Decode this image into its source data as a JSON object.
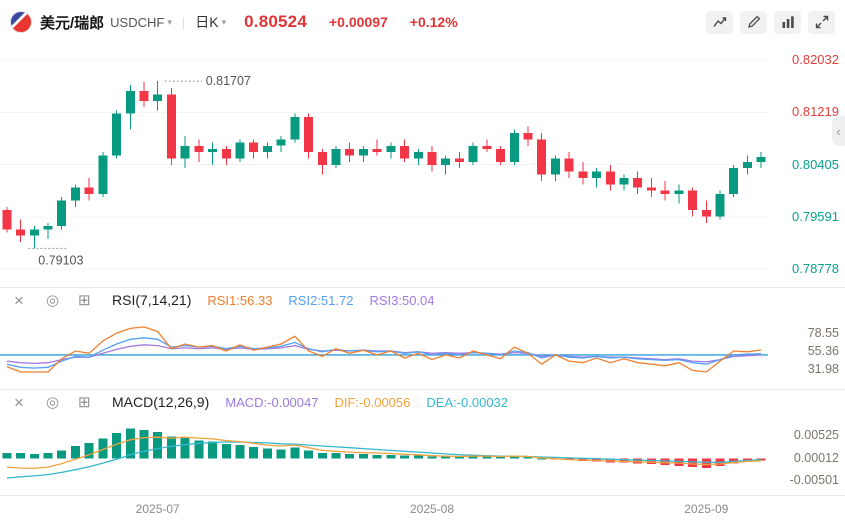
{
  "header": {
    "pair_name": "美元/瑞郎",
    "pair_code": "USDCHF",
    "timeframe": "日K",
    "price": "0.80524",
    "change": "+0.00097",
    "change_pct": "+0.12%"
  },
  "toolbar": {
    "buttons": [
      "save-chart",
      "draw-tools",
      "indicator-settings",
      "fullscreen"
    ]
  },
  "glyphs": {
    "caret": "▾",
    "divider": "|",
    "close": "×",
    "settings": "◎",
    "add": "⊞",
    "collapse": "‹"
  },
  "colors": {
    "up": "#089981",
    "down": "#f23645",
    "price_text": "#e03537",
    "axis_above": "#e23e3a",
    "axis_below": "#0aa08e",
    "rsi1": "#ee8030",
    "rsi2": "#55a0f0",
    "rsi3": "#a379e0",
    "macd_value": "#9b7be0",
    "dif": "#f0a23c",
    "dea": "#36b8cf",
    "ref_line": "#2f9fdc",
    "grid": "#f4f4f4",
    "sub_axis_text": "#7c756a",
    "x_axis_text": "#8a8a8a"
  },
  "rsi_panel": {
    "title": "RSI(7,14,21)",
    "v1": {
      "text": "RSI1:56.33"
    },
    "v2": {
      "text": "RSI2:51.72"
    },
    "v3": {
      "text": "RSI3:50.04"
    }
  },
  "macd_panel": {
    "title": "MACD(12,26,9)",
    "v1": {
      "text": "MACD:-0.00047"
    },
    "v2": {
      "text": "DIF:-0.00056"
    },
    "v3": {
      "text": "DEA:-0.00032"
    }
  },
  "chart_data": [
    {
      "type": "candlestick",
      "symbol": "USDCHF",
      "timeframe": "daily",
      "ylim": [
        0.7861,
        0.8216
      ],
      "axis_labels": [
        {
          "price": 0.82032,
          "text": "0.82032",
          "color": "#e23e3a"
        },
        {
          "price": 0.81219,
          "text": "0.81219",
          "color": "#e23e3a"
        },
        {
          "price": 0.80405,
          "text": "0.80405",
          "color": "#0aa08e"
        },
        {
          "price": 0.79591,
          "text": "0.79591",
          "color": "#0aa08e"
        },
        {
          "price": 0.78778,
          "text": "0.78778",
          "color": "#0aa08e"
        }
      ],
      "high_marker": {
        "index": 11,
        "price": 0.81707,
        "label": "0.81707"
      },
      "low_marker": {
        "index": 2,
        "price": 0.79103,
        "label": "0.79103"
      },
      "x_ticks": [
        {
          "index": 11,
          "label": "2025-07"
        },
        {
          "index": 31,
          "label": "2025-08"
        },
        {
          "index": 51,
          "label": "2025-09"
        }
      ],
      "ohlc": [
        [
          0.797,
          0.7975,
          0.7935,
          0.794
        ],
        [
          0.794,
          0.7955,
          0.792,
          0.793
        ],
        [
          0.793,
          0.7945,
          0.79103,
          0.794
        ],
        [
          0.794,
          0.795,
          0.7925,
          0.7945
        ],
        [
          0.7945,
          0.799,
          0.794,
          0.7985
        ],
        [
          0.7985,
          0.801,
          0.7975,
          0.8005
        ],
        [
          0.8005,
          0.802,
          0.7985,
          0.7995
        ],
        [
          0.7995,
          0.806,
          0.799,
          0.8055
        ],
        [
          0.8055,
          0.8125,
          0.805,
          0.812
        ],
        [
          0.812,
          0.8165,
          0.8095,
          0.8155
        ],
        [
          0.8155,
          0.817,
          0.813,
          0.814
        ],
        [
          0.814,
          0.81707,
          0.8125,
          0.815
        ],
        [
          0.815,
          0.816,
          0.804,
          0.805
        ],
        [
          0.805,
          0.8085,
          0.8035,
          0.807
        ],
        [
          0.807,
          0.808,
          0.8045,
          0.806
        ],
        [
          0.806,
          0.8075,
          0.804,
          0.8065
        ],
        [
          0.8065,
          0.807,
          0.804,
          0.805
        ],
        [
          0.805,
          0.808,
          0.8045,
          0.8075
        ],
        [
          0.8075,
          0.808,
          0.805,
          0.806
        ],
        [
          0.806,
          0.8075,
          0.805,
          0.807
        ],
        [
          0.807,
          0.8085,
          0.806,
          0.808
        ],
        [
          0.808,
          0.812,
          0.8075,
          0.8115
        ],
        [
          0.8115,
          0.812,
          0.805,
          0.806
        ],
        [
          0.806,
          0.8065,
          0.8025,
          0.804
        ],
        [
          0.804,
          0.807,
          0.8035,
          0.8065
        ],
        [
          0.8065,
          0.8075,
          0.8045,
          0.8055
        ],
        [
          0.8055,
          0.807,
          0.8045,
          0.8065
        ],
        [
          0.8065,
          0.808,
          0.8055,
          0.806
        ],
        [
          0.806,
          0.8075,
          0.805,
          0.807
        ],
        [
          0.807,
          0.808,
          0.8045,
          0.805
        ],
        [
          0.805,
          0.8065,
          0.804,
          0.806
        ],
        [
          0.806,
          0.807,
          0.803,
          0.804
        ],
        [
          0.804,
          0.8055,
          0.8025,
          0.805
        ],
        [
          0.805,
          0.806,
          0.8035,
          0.8045
        ],
        [
          0.8045,
          0.8075,
          0.804,
          0.807
        ],
        [
          0.807,
          0.808,
          0.806,
          0.8065
        ],
        [
          0.8065,
          0.807,
          0.804,
          0.8045
        ],
        [
          0.8045,
          0.8095,
          0.804,
          0.809
        ],
        [
          0.809,
          0.81,
          0.807,
          0.808
        ],
        [
          0.808,
          0.809,
          0.8015,
          0.8025
        ],
        [
          0.8025,
          0.8055,
          0.8015,
          0.805
        ],
        [
          0.805,
          0.806,
          0.802,
          0.803
        ],
        [
          0.803,
          0.8045,
          0.801,
          0.802
        ],
        [
          0.802,
          0.8035,
          0.8005,
          0.803
        ],
        [
          0.803,
          0.804,
          0.8,
          0.801
        ],
        [
          0.801,
          0.8025,
          0.8,
          0.802
        ],
        [
          0.802,
          0.803,
          0.7995,
          0.8005
        ],
        [
          0.8005,
          0.802,
          0.799,
          0.8
        ],
        [
          0.8,
          0.8015,
          0.7985,
          0.7995
        ],
        [
          0.7995,
          0.801,
          0.798,
          0.8
        ],
        [
          0.8,
          0.8005,
          0.796,
          0.797
        ],
        [
          0.797,
          0.7985,
          0.795,
          0.796
        ],
        [
          0.796,
          0.8,
          0.7955,
          0.7995
        ],
        [
          0.7995,
          0.804,
          0.799,
          0.8035
        ],
        [
          0.8035,
          0.8055,
          0.8025,
          0.8045
        ],
        [
          0.8045,
          0.806,
          0.8035,
          0.80524
        ]
      ]
    },
    {
      "type": "line",
      "name": "RSI",
      "ylim": [
        10,
        100
      ],
      "ref_line": 50,
      "axis_labels": [
        78.55,
        55.36,
        31.98
      ],
      "series": [
        {
          "name": "RSI1",
          "color": "#ee8030",
          "values": [
            35,
            28,
            28,
            28,
            45,
            55,
            52,
            68,
            78,
            84,
            86,
            80,
            58,
            64,
            60,
            62,
            55,
            63,
            56,
            60,
            64,
            74,
            55,
            48,
            58,
            52,
            56,
            50,
            55,
            46,
            52,
            44,
            50,
            46,
            55,
            50,
            45,
            60,
            52,
            38,
            50,
            42,
            40,
            46,
            40,
            45,
            40,
            38,
            36,
            40,
            30,
            28,
            42,
            55,
            54,
            56.33
          ]
        },
        {
          "name": "RSI2",
          "color": "#55a0f0",
          "values": [
            38,
            34,
            33,
            34,
            42,
            48,
            47,
            56,
            64,
            70,
            72,
            70,
            60,
            62,
            60,
            61,
            58,
            61,
            58,
            59,
            61,
            66,
            58,
            54,
            57,
            55,
            56,
            54,
            55,
            52,
            54,
            50,
            52,
            50,
            53,
            52,
            50,
            55,
            53,
            46,
            50,
            47,
            46,
            48,
            46,
            47,
            45,
            44,
            43,
            44,
            40,
            38,
            44,
            50,
            51,
            51.72
          ]
        },
        {
          "name": "RSI3",
          "color": "#a379e0",
          "values": [
            42,
            40,
            39,
            40,
            44,
            47,
            47,
            52,
            57,
            61,
            63,
            62,
            58,
            59,
            58,
            59,
            57,
            59,
            57,
            58,
            59,
            62,
            57,
            55,
            56,
            55,
            56,
            55,
            55,
            53,
            54,
            52,
            53,
            52,
            53,
            52,
            51,
            53,
            52,
            48,
            50,
            48,
            47,
            48,
            47,
            47,
            46,
            45,
            44,
            45,
            42,
            41,
            44,
            48,
            49,
            50.04
          ]
        }
      ]
    },
    {
      "type": "macd",
      "name": "MACD",
      "ylim": [
        -0.0072,
        0.0087
      ],
      "axis_labels": [
        {
          "value": 0.00525,
          "text": "0.00525"
        },
        {
          "value": 0.00012,
          "text": "0.00012"
        },
        {
          "value": -0.00501,
          "text": "-0.00501"
        }
      ],
      "histogram": [
        0.0012,
        0.0012,
        0.001,
        0.0012,
        0.0018,
        0.0028,
        0.0035,
        0.0045,
        0.0058,
        0.0068,
        0.0064,
        0.006,
        0.005,
        0.0046,
        0.004,
        0.0038,
        0.0032,
        0.003,
        0.0026,
        0.0022,
        0.002,
        0.0024,
        0.0018,
        0.0012,
        0.0012,
        0.001,
        0.001,
        0.0008,
        0.0008,
        0.0006,
        0.0006,
        0.0004,
        0.0004,
        0.0004,
        0.0005,
        0.0005,
        0.0003,
        0.0004,
        0.0003,
        0.0,
        -0.0002,
        -0.0004,
        -0.0006,
        -0.0007,
        -0.0009,
        -0.001,
        -0.0012,
        -0.0013,
        -0.0015,
        -0.0017,
        -0.002,
        -0.0022,
        -0.0018,
        -0.0012,
        -0.0008,
        -0.00047
      ],
      "series": [
        {
          "name": "DIF",
          "color": "#f0a23c",
          "values": [
            -0.002,
            -0.0022,
            -0.0023,
            -0.002,
            -0.0012,
            -0.0002,
            0.0008,
            0.002,
            0.0032,
            0.0042,
            0.0047,
            0.0048,
            0.0046,
            0.0048,
            0.0046,
            0.0044,
            0.004,
            0.0038,
            0.0034,
            0.003,
            0.0028,
            0.003,
            0.0024,
            0.0018,
            0.0016,
            0.0014,
            0.0013,
            0.0012,
            0.0011,
            0.0009,
            0.0008,
            0.0006,
            0.0005,
            0.0004,
            0.0005,
            0.0005,
            0.0004,
            0.0005,
            0.0004,
            0.0001,
            -0.0001,
            -0.0003,
            -0.0004,
            -0.0005,
            -0.0006,
            -0.0007,
            -0.0008,
            -0.0009,
            -0.001,
            -0.0011,
            -0.0013,
            -0.0014,
            -0.0013,
            -0.001,
            -0.0007,
            -0.00056
          ]
        },
        {
          "name": "DEA",
          "color": "#36b8cf",
          "values": [
            -0.0045,
            -0.0042,
            -0.004,
            -0.0037,
            -0.0032,
            -0.0026,
            -0.0019,
            -0.0011,
            -0.0002,
            0.0008,
            0.0016,
            0.0022,
            0.0027,
            0.0031,
            0.0034,
            0.0036,
            0.0037,
            0.0037,
            0.0036,
            0.0035,
            0.0033,
            0.0032,
            0.003,
            0.0028,
            0.0026,
            0.0024,
            0.0022,
            0.002,
            0.0018,
            0.0016,
            0.0014,
            0.0012,
            0.001,
            0.0008,
            0.0007,
            0.0006,
            0.0005,
            0.0005,
            0.0004,
            0.0003,
            0.0002,
            0.0001,
            0.0,
            -0.0001,
            -0.0002,
            -0.0003,
            -0.0004,
            -0.0005,
            -0.0006,
            -0.0007,
            -0.0008,
            -0.0009,
            -0.0009,
            -0.0007,
            -0.0005,
            -0.00032
          ]
        }
      ]
    }
  ]
}
